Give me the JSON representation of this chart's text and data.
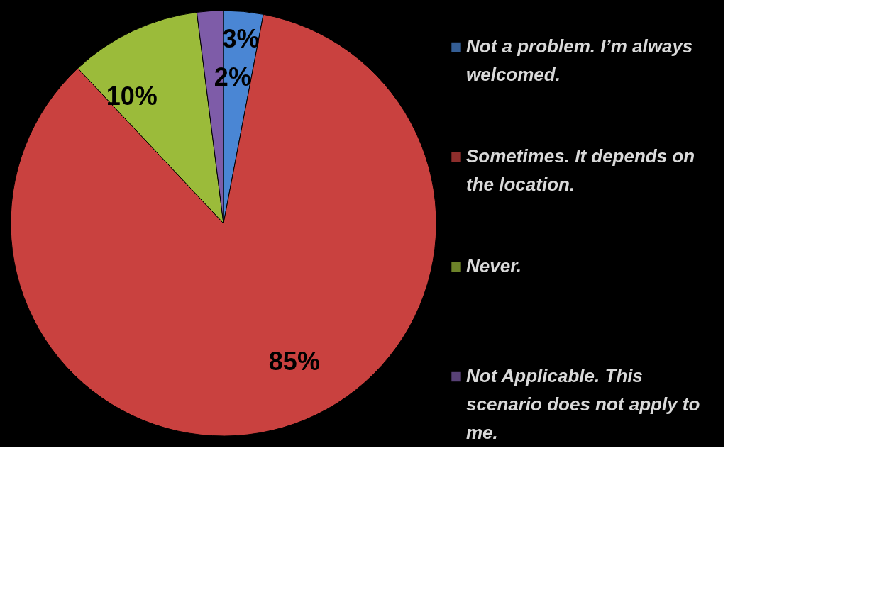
{
  "chart_data": {
    "type": "pie",
    "categories": [
      "Not a problem.  I’m always welcomed.",
      "Sometimes.  It depends on the location.",
      "Never.",
      "Not Applicable. This scenario does not apply to me."
    ],
    "values": [
      3,
      85,
      10,
      2
    ],
    "colors": [
      "#4a86d4",
      "#c9413f",
      "#9bbb3a",
      "#7e5ca8"
    ],
    "value_labels": [
      "3%",
      "85%",
      "10%",
      "2%"
    ],
    "legend": "right"
  }
}
